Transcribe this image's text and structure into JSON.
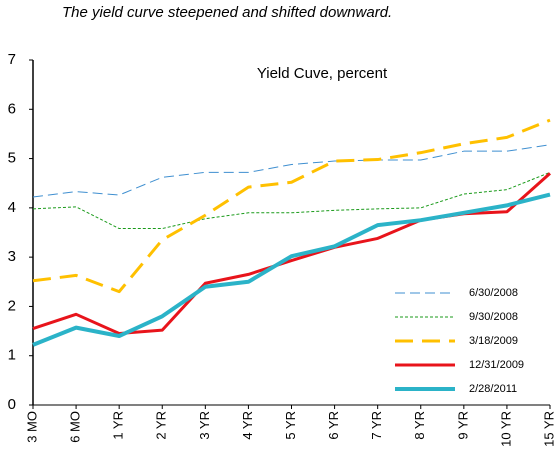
{
  "chart_data": {
    "type": "line",
    "title": "The yield curve steepened and shifted downward.",
    "subtitle": "Yield Cuve, percent",
    "categories": [
      "3 MO",
      "6 MO",
      "1 YR",
      "2 YR",
      "3 YR",
      "4 YR",
      "5 YR",
      "6 YR",
      "7 YR",
      "8 YR",
      "9 YR",
      "10 YR",
      "15 YR"
    ],
    "series": [
      {
        "name": "6/30/2008",
        "color": "#3f8fd0",
        "style": "dashed",
        "width": 1,
        "values": [
          4.22,
          4.33,
          4.26,
          4.62,
          4.72,
          4.72,
          4.88,
          4.95,
          4.97,
          4.97,
          5.15,
          5.15,
          5.28
        ]
      },
      {
        "name": "9/30/2008",
        "color": "#1a9a1a",
        "style": "dotted",
        "width": 1,
        "values": [
          3.98,
          4.02,
          3.58,
          3.58,
          3.78,
          3.9,
          3.9,
          3.95,
          3.98,
          4.0,
          4.28,
          4.37,
          4.72
        ]
      },
      {
        "name": "3/18/2009",
        "color": "#ffc000",
        "style": "dashed",
        "width": 3,
        "values": [
          2.52,
          2.63,
          2.3,
          3.35,
          3.85,
          4.42,
          4.52,
          4.95,
          4.98,
          5.12,
          5.3,
          5.43,
          5.78
        ]
      },
      {
        "name": "12/31/2009",
        "color": "#e8141b",
        "style": "solid",
        "width": 3,
        "values": [
          1.55,
          1.84,
          1.45,
          1.52,
          2.47,
          2.65,
          2.93,
          3.2,
          3.38,
          3.75,
          3.88,
          3.92,
          4.7
        ]
      },
      {
        "name": "2/28/2011",
        "color": "#2bb3c8",
        "style": "solid",
        "width": 4,
        "values": [
          1.22,
          1.57,
          1.4,
          1.8,
          2.4,
          2.5,
          3.02,
          3.22,
          3.65,
          3.75,
          3.9,
          4.05,
          4.27
        ]
      }
    ],
    "ylim": [
      0,
      7
    ],
    "yticks": [
      0,
      1,
      2,
      3,
      4,
      5,
      6,
      7
    ],
    "grid": false,
    "legend": "lower right"
  }
}
